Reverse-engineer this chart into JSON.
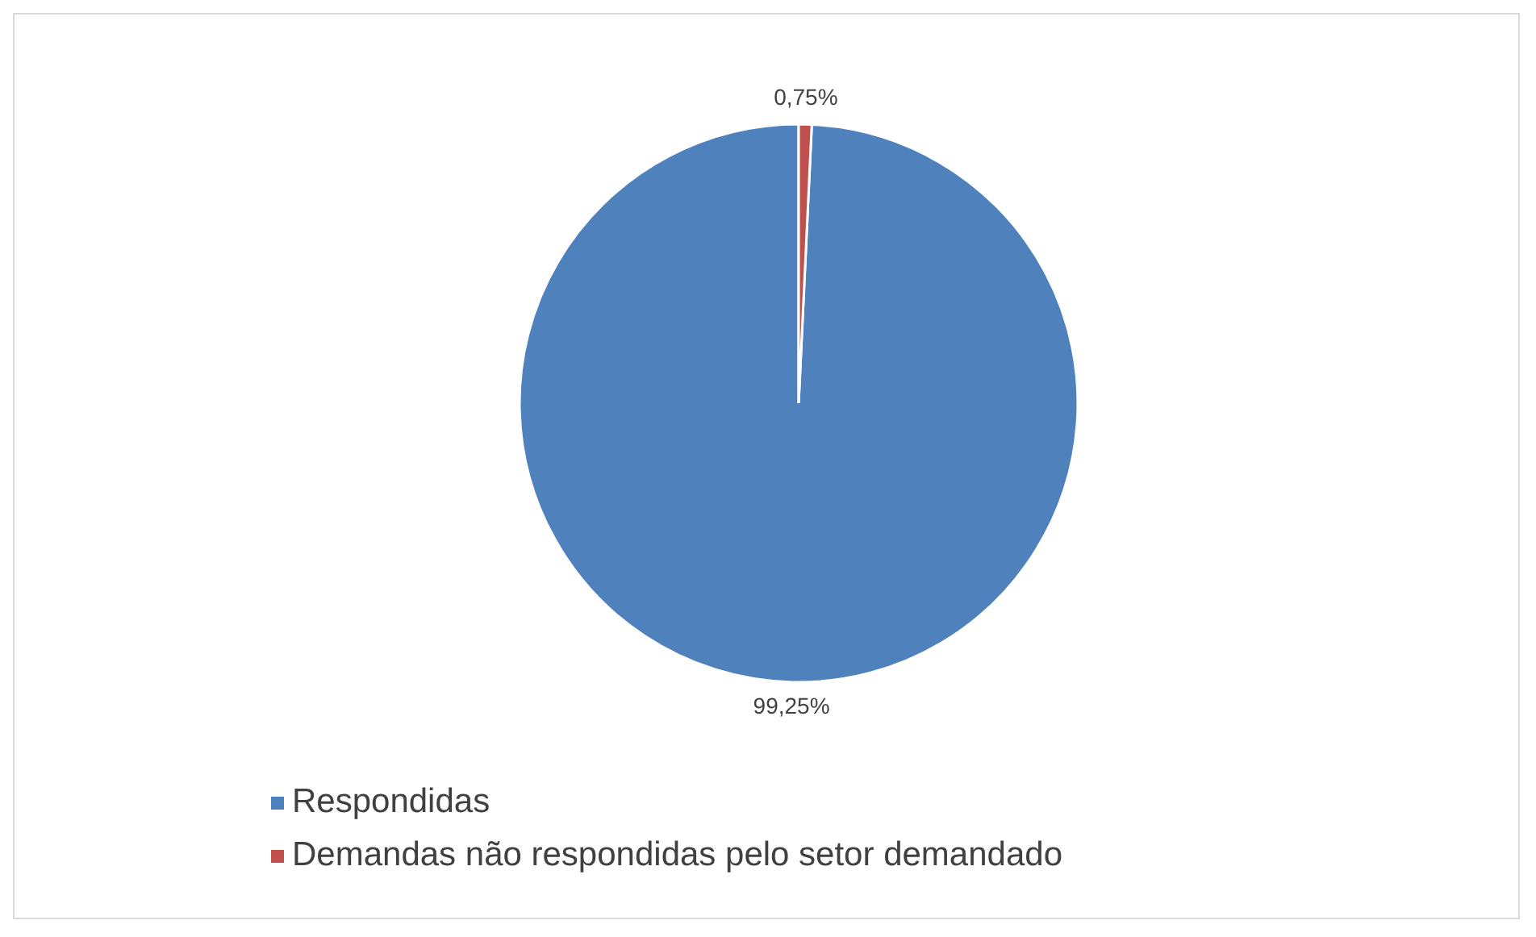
{
  "chart_data": {
    "type": "pie",
    "categories": [
      "Respondidas",
      "Demandas não respondidas pelo setor demandado"
    ],
    "values": [
      99.25,
      0.75
    ],
    "colors": [
      "#4f81bd",
      "#c0504d"
    ],
    "value_labels": [
      "99,25%",
      "0,75%"
    ],
    "legend": "bottom"
  }
}
